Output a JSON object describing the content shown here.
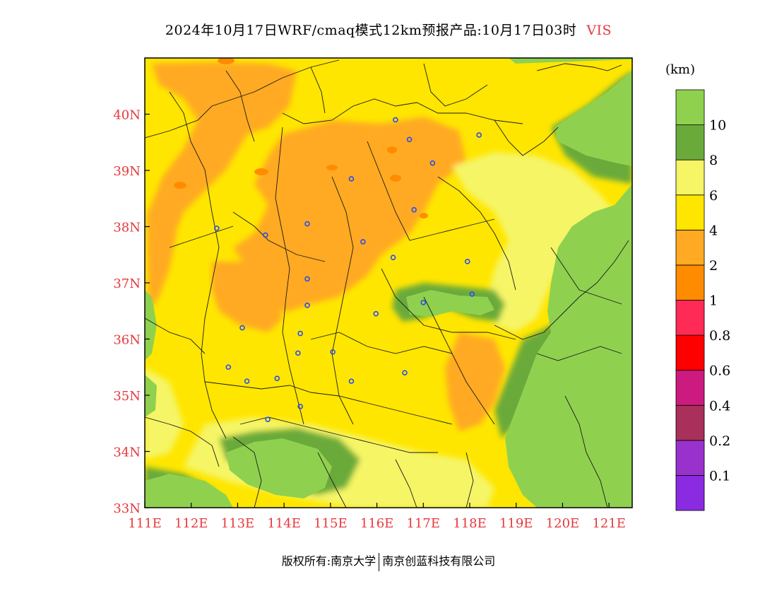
{
  "title": "2024年10月17日WRF/cmaq模式12km预报产品:10月17日03时",
  "variable": "VIS",
  "unit_label": "(km)",
  "footer": {
    "left": "版权所有:南京大学",
    "right": "南京创蓝科技有限公司"
  },
  "colors": {
    "axis_labels": "#e8383d",
    "station_marker": "#2a4cf0",
    "boundary": "#1a1a1a"
  },
  "chart_data": {
    "type": "heatmap",
    "lon_range": [
      111,
      121.5
    ],
    "lat_range": [
      33,
      41
    ],
    "x_ticks": [
      {
        "value": 111,
        "label": "111E"
      },
      {
        "value": 112,
        "label": "112E"
      },
      {
        "value": 113,
        "label": "113E"
      },
      {
        "value": 114,
        "label": "114E"
      },
      {
        "value": 115,
        "label": "115E"
      },
      {
        "value": 116,
        "label": "116E"
      },
      {
        "value": 117,
        "label": "117E"
      },
      {
        "value": 118,
        "label": "118E"
      },
      {
        "value": 119,
        "label": "119E"
      },
      {
        "value": 120,
        "label": "120E"
      },
      {
        "value": 121,
        "label": "121E"
      }
    ],
    "y_ticks": [
      {
        "value": 33,
        "label": "33N"
      },
      {
        "value": 34,
        "label": "34N"
      },
      {
        "value": 35,
        "label": "35N"
      },
      {
        "value": 36,
        "label": "36N"
      },
      {
        "value": 37,
        "label": "37N"
      },
      {
        "value": 38,
        "label": "38N"
      },
      {
        "value": 39,
        "label": "39N"
      },
      {
        "value": 40,
        "label": "40N"
      }
    ],
    "legend": {
      "placement": "right",
      "bins": [
        {
          "color": "#8a2be2"
        },
        {
          "color": "#9932cc"
        },
        {
          "color": "#a8305a"
        },
        {
          "color": "#cc1a80"
        },
        {
          "color": "#ff0000"
        },
        {
          "color": "#ff2a55"
        },
        {
          "color": "#ff8c00"
        },
        {
          "color": "#ffaa22"
        },
        {
          "color": "#ffe600"
        },
        {
          "color": "#f5f566"
        },
        {
          "color": "#6aaa3a"
        },
        {
          "color": "#8fd14f"
        }
      ],
      "tick_labels": [
        "0.1",
        "0.2",
        "0.4",
        "0.6",
        "0.8",
        "1",
        "2",
        "4",
        "6",
        "8",
        "10"
      ]
    },
    "regions": [
      {
        "name": "base",
        "level": "4-6"
      },
      {
        "name": "northwest-haze",
        "level": "2-4"
      },
      {
        "name": "north-central-haze",
        "level": "2-4"
      },
      {
        "name": "central-haze",
        "level": "2-4"
      },
      {
        "name": "shandong-haze",
        "level": "2-4"
      },
      {
        "name": "east-coast",
        "level": ">10"
      },
      {
        "name": "bohai-sea",
        "level": ">10"
      },
      {
        "name": "southwest-clear",
        "level": ">10"
      },
      {
        "name": "west-clear",
        "level": ">10"
      },
      {
        "name": "taishan-clear",
        "level": "8-10"
      },
      {
        "name": "low-vis-spots",
        "level": "1-2"
      }
    ],
    "stations": [
      {
        "lon": 116.4,
        "lat": 39.9
      },
      {
        "lon": 116.7,
        "lat": 39.55
      },
      {
        "lon": 117.2,
        "lat": 39.13
      },
      {
        "lon": 118.2,
        "lat": 39.63
      },
      {
        "lon": 115.45,
        "lat": 38.85
      },
      {
        "lon": 116.8,
        "lat": 38.3
      },
      {
        "lon": 112.55,
        "lat": 37.97
      },
      {
        "lon": 113.6,
        "lat": 37.85
      },
      {
        "lon": 114.5,
        "lat": 38.05
      },
      {
        "lon": 115.7,
        "lat": 37.73
      },
      {
        "lon": 116.35,
        "lat": 37.45
      },
      {
        "lon": 117.95,
        "lat": 37.38
      },
      {
        "lon": 114.5,
        "lat": 37.07
      },
      {
        "lon": 118.05,
        "lat": 36.8
      },
      {
        "lon": 117.0,
        "lat": 36.65
      },
      {
        "lon": 115.98,
        "lat": 36.45
      },
      {
        "lon": 114.5,
        "lat": 36.6
      },
      {
        "lon": 113.1,
        "lat": 36.2
      },
      {
        "lon": 114.35,
        "lat": 36.1
      },
      {
        "lon": 114.3,
        "lat": 35.75
      },
      {
        "lon": 115.05,
        "lat": 35.77
      },
      {
        "lon": 112.8,
        "lat": 35.5
      },
      {
        "lon": 113.2,
        "lat": 35.25
      },
      {
        "lon": 113.85,
        "lat": 35.3
      },
      {
        "lon": 115.45,
        "lat": 35.25
      },
      {
        "lon": 116.6,
        "lat": 35.4
      },
      {
        "lon": 114.35,
        "lat": 34.8
      },
      {
        "lon": 113.65,
        "lat": 34.57
      }
    ]
  }
}
